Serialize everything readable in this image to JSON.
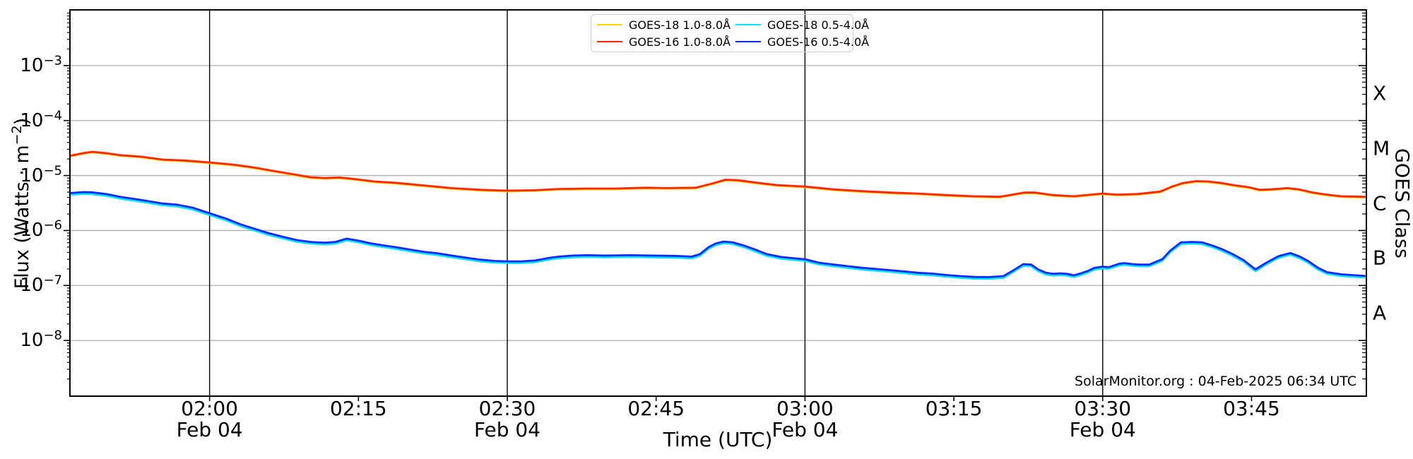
{
  "figure": {
    "bg": "#ffffff",
    "annotation": "SolarMonitor.org : 04-Feb-2025 06:34 UTC"
  },
  "x_axis": {
    "title": "Time (UTC)",
    "ticks": [
      {
        "t": 120,
        "time": "02:00",
        "date": "Feb 04"
      },
      {
        "t": 135,
        "time": "02:15",
        "date": ""
      },
      {
        "t": 150,
        "time": "02:30",
        "date": "Feb 04"
      },
      {
        "t": 165,
        "time": "02:45",
        "date": ""
      },
      {
        "t": 180,
        "time": "03:00",
        "date": "Feb 04"
      },
      {
        "t": 195,
        "time": "03:15",
        "date": ""
      },
      {
        "t": 210,
        "time": "03:30",
        "date": "Feb 04"
      },
      {
        "t": 225,
        "time": "03:45",
        "date": ""
      }
    ]
  },
  "y_axis": {
    "title_pre": "Flux (Watts · m",
    "title_sup": "−2",
    "title_post": ")",
    "ticks": [
      {
        "base": "10",
        "exp": "−3",
        "value": 0.001
      },
      {
        "base": "10",
        "exp": "−4",
        "value": 0.0001
      },
      {
        "base": "10",
        "exp": "−5",
        "value": 1e-05
      },
      {
        "base": "10",
        "exp": "−6",
        "value": 1e-06
      },
      {
        "base": "10",
        "exp": "−7",
        "value": 1e-07
      },
      {
        "base": "10",
        "exp": "−8",
        "value": 1e-08
      }
    ]
  },
  "right_axis": {
    "title": "GOES Class",
    "classes": [
      {
        "label": "X",
        "log_center": -3.5
      },
      {
        "label": "M",
        "log_center": -4.5
      },
      {
        "label": "C",
        "log_center": -5.5
      },
      {
        "label": "B",
        "log_center": -6.5
      },
      {
        "label": "A",
        "log_center": -7.5
      }
    ]
  },
  "legend": {
    "entries": [
      {
        "label": "GOES-18 1.0-8.0Å",
        "color": "#ffd300"
      },
      {
        "label": "GOES-16 1.0-8.0Å",
        "color": "#ff2600"
      },
      {
        "label": "GOES-18 0.5-4.0Å",
        "color": "#00e4ff"
      },
      {
        "label": "GOES-16 0.5-4.0Å",
        "color": "#1028ff"
      }
    ]
  },
  "chart_data": {
    "type": "line",
    "title": "",
    "xlabel": "Time (UTC)",
    "ylabel": "Flux (Watts · m⁻²)",
    "x_unit": "minutes UTC on 04-Feb-2025",
    "x_range": [
      106,
      236.5
    ],
    "y_scale": "log",
    "y_range": [
      1e-09,
      0.01
    ],
    "h_gridlines_log": [
      -3,
      -4,
      -5,
      -6,
      -7,
      -8
    ],
    "v_gridlines_t": [
      120,
      150,
      180,
      210
    ],
    "grid_color": "#b0b0b0",
    "vline_color": "#000000",
    "series": [
      {
        "name": "GOES-18 1.0-8.0Å",
        "color": "#ffd300",
        "scale_of_index": 2,
        "scale": 0.97
      },
      {
        "name": "GOES-18 0.5-4.0Å",
        "color": "#00e4ff",
        "scale_of_index": 3,
        "scale": 0.93
      },
      {
        "name": "GOES-16 1.0-8.0Å",
        "color": "#ff2600",
        "points": [
          [
            106,
            2.3e-05
          ],
          [
            107.5,
            2.6e-05
          ],
          [
            108.2,
            2.7e-05
          ],
          [
            109.6,
            2.55e-05
          ],
          [
            111,
            2.35e-05
          ],
          [
            113.1,
            2.2e-05
          ],
          [
            115.3,
            1.95e-05
          ],
          [
            117.4,
            1.88e-05
          ],
          [
            120,
            1.73e-05
          ],
          [
            122.4,
            1.58e-05
          ],
          [
            124.5,
            1.4e-05
          ],
          [
            126.6,
            1.2e-05
          ],
          [
            128.8,
            1.03e-05
          ],
          [
            130.2,
            9.3e-06
          ],
          [
            131.6,
            9e-06
          ],
          [
            133.1,
            9.2e-06
          ],
          [
            134.5,
            8.7e-06
          ],
          [
            136.6,
            7.8e-06
          ],
          [
            138.7,
            7.4e-06
          ],
          [
            141.6,
            6.6e-06
          ],
          [
            144.4,
            5.9e-06
          ],
          [
            147.3,
            5.5e-06
          ],
          [
            150,
            5.3e-06
          ],
          [
            152.8,
            5.4e-06
          ],
          [
            155.2,
            5.7e-06
          ],
          [
            158,
            5.8e-06
          ],
          [
            161,
            5.8e-06
          ],
          [
            164,
            6e-06
          ],
          [
            166,
            5.9e-06
          ],
          [
            169,
            6e-06
          ],
          [
            170.7,
            7.2e-06
          ],
          [
            172,
            8.4e-06
          ],
          [
            173.3,
            8.2e-06
          ],
          [
            175.4,
            7.3e-06
          ],
          [
            177.2,
            6.7e-06
          ],
          [
            180,
            6.3e-06
          ],
          [
            182.9,
            5.6e-06
          ],
          [
            185.7,
            5.2e-06
          ],
          [
            188.6,
            4.9e-06
          ],
          [
            191.4,
            4.7e-06
          ],
          [
            194.3,
            4.4e-06
          ],
          [
            196.9,
            4.2e-06
          ],
          [
            199.6,
            4.1e-06
          ],
          [
            202.1,
            4.9e-06
          ],
          [
            203.2,
            4.9e-06
          ],
          [
            205,
            4.4e-06
          ],
          [
            207.1,
            4.2e-06
          ],
          [
            210,
            4.7e-06
          ],
          [
            211.4,
            4.5e-06
          ],
          [
            213.5,
            4.6e-06
          ],
          [
            215.8,
            5.1e-06
          ],
          [
            217,
            6.3e-06
          ],
          [
            218.1,
            7.3e-06
          ],
          [
            219.4,
            7.9e-06
          ],
          [
            220.6,
            7.8e-06
          ],
          [
            222,
            7.3e-06
          ],
          [
            223.4,
            6.6e-06
          ],
          [
            224.8,
            6.1e-06
          ],
          [
            225.8,
            5.5e-06
          ],
          [
            227,
            5.6e-06
          ],
          [
            228.6,
            5.9e-06
          ],
          [
            229.8,
            5.6e-06
          ],
          [
            231.2,
            4.9e-06
          ],
          [
            232.6,
            4.5e-06
          ],
          [
            234,
            4.2e-06
          ],
          [
            236.4,
            4.1e-06
          ]
        ]
      },
      {
        "name": "GOES-16 0.5-4.0Å",
        "color": "#1028ff",
        "points": [
          [
            106,
            4.8e-06
          ],
          [
            107.3,
            5e-06
          ],
          [
            108.1,
            4.95e-06
          ],
          [
            109.6,
            4.6e-06
          ],
          [
            111,
            4.1e-06
          ],
          [
            113.1,
            3.6e-06
          ],
          [
            115.3,
            3.1e-06
          ],
          [
            116.7,
            2.95e-06
          ],
          [
            118.3,
            2.6e-06
          ],
          [
            120,
            2.06e-06
          ],
          [
            121.7,
            1.64e-06
          ],
          [
            123.1,
            1.3e-06
          ],
          [
            124.5,
            1.08e-06
          ],
          [
            125.9,
            9e-07
          ],
          [
            127.4,
            7.7e-07
          ],
          [
            128.8,
            6.7e-07
          ],
          [
            130.2,
            6.2e-07
          ],
          [
            131.6,
            6e-07
          ],
          [
            132.7,
            6.2e-07
          ],
          [
            133.8,
            7.1e-07
          ],
          [
            134.9,
            6.6e-07
          ],
          [
            136.3,
            5.8e-07
          ],
          [
            137.7,
            5.3e-07
          ],
          [
            138.7,
            5e-07
          ],
          [
            140.2,
            4.5e-07
          ],
          [
            141.6,
            4.1e-07
          ],
          [
            143,
            3.85e-07
          ],
          [
            144.4,
            3.5e-07
          ],
          [
            145.9,
            3.2e-07
          ],
          [
            147.3,
            2.95e-07
          ],
          [
            148.7,
            2.8e-07
          ],
          [
            150,
            2.75e-07
          ],
          [
            151.4,
            2.75e-07
          ],
          [
            152.8,
            2.85e-07
          ],
          [
            154.3,
            3.2e-07
          ],
          [
            155.2,
            3.35e-07
          ],
          [
            156.6,
            3.5e-07
          ],
          [
            158,
            3.55e-07
          ],
          [
            159.9,
            3.5e-07
          ],
          [
            162.3,
            3.55e-07
          ],
          [
            164.7,
            3.5e-07
          ],
          [
            167,
            3.45e-07
          ],
          [
            168.6,
            3.35e-07
          ],
          [
            169.4,
            3.7e-07
          ],
          [
            170.3,
            5e-07
          ],
          [
            171,
            5.8e-07
          ],
          [
            171.8,
            6.3e-07
          ],
          [
            172.7,
            6.1e-07
          ],
          [
            173.9,
            5.3e-07
          ],
          [
            175,
            4.5e-07
          ],
          [
            175.7,
            4e-07
          ],
          [
            176.2,
            3.7e-07
          ],
          [
            177.6,
            3.3e-07
          ],
          [
            178.7,
            3.15e-07
          ],
          [
            180,
            3e-07
          ],
          [
            181.4,
            2.6e-07
          ],
          [
            182.9,
            2.4e-07
          ],
          [
            184.3,
            2.25e-07
          ],
          [
            185.7,
            2.1e-07
          ],
          [
            187.1,
            2e-07
          ],
          [
            188.6,
            1.9e-07
          ],
          [
            190,
            1.8e-07
          ],
          [
            191.4,
            1.7e-07
          ],
          [
            192.8,
            1.65e-07
          ],
          [
            194.3,
            1.55e-07
          ],
          [
            195.7,
            1.48e-07
          ],
          [
            197.1,
            1.43e-07
          ],
          [
            198.5,
            1.42e-07
          ],
          [
            200,
            1.48e-07
          ],
          [
            200.9,
            1.84e-07
          ],
          [
            202,
            2.45e-07
          ],
          [
            202.8,
            2.4e-07
          ],
          [
            203.5,
            1.96e-07
          ],
          [
            204.3,
            1.7e-07
          ],
          [
            205,
            1.63e-07
          ],
          [
            205.7,
            1.66e-07
          ],
          [
            206.4,
            1.63e-07
          ],
          [
            207.1,
            1.53e-07
          ],
          [
            207.8,
            1.66e-07
          ],
          [
            208.5,
            1.84e-07
          ],
          [
            209.2,
            2.1e-07
          ],
          [
            210,
            2.2e-07
          ],
          [
            210.6,
            2.15e-07
          ],
          [
            211.7,
            2.5e-07
          ],
          [
            212.2,
            2.55e-07
          ],
          [
            213,
            2.45e-07
          ],
          [
            213.7,
            2.4e-07
          ],
          [
            214.7,
            2.4e-07
          ],
          [
            216,
            3e-07
          ],
          [
            216.8,
            4.3e-07
          ],
          [
            217.9,
            6.1e-07
          ],
          [
            219,
            6.2e-07
          ],
          [
            220,
            6.1e-07
          ],
          [
            221.1,
            5.3e-07
          ],
          [
            222,
            4.6e-07
          ],
          [
            223,
            3.8e-07
          ],
          [
            224.2,
            2.9e-07
          ],
          [
            225.4,
            1.96e-07
          ],
          [
            226.5,
            2.6e-07
          ],
          [
            227.7,
            3.4e-07
          ],
          [
            228.9,
            3.9e-07
          ],
          [
            229.8,
            3.4e-07
          ],
          [
            230.7,
            2.8e-07
          ],
          [
            231.7,
            2.1e-07
          ],
          [
            232.6,
            1.75e-07
          ],
          [
            234,
            1.6e-07
          ],
          [
            235.1,
            1.55e-07
          ],
          [
            236.4,
            1.5e-07
          ]
        ]
      }
    ],
    "legend_position": "top center, 2 columns",
    "grid": "horizontal decade gridlines gray; vertical black lines each 30 min"
  }
}
